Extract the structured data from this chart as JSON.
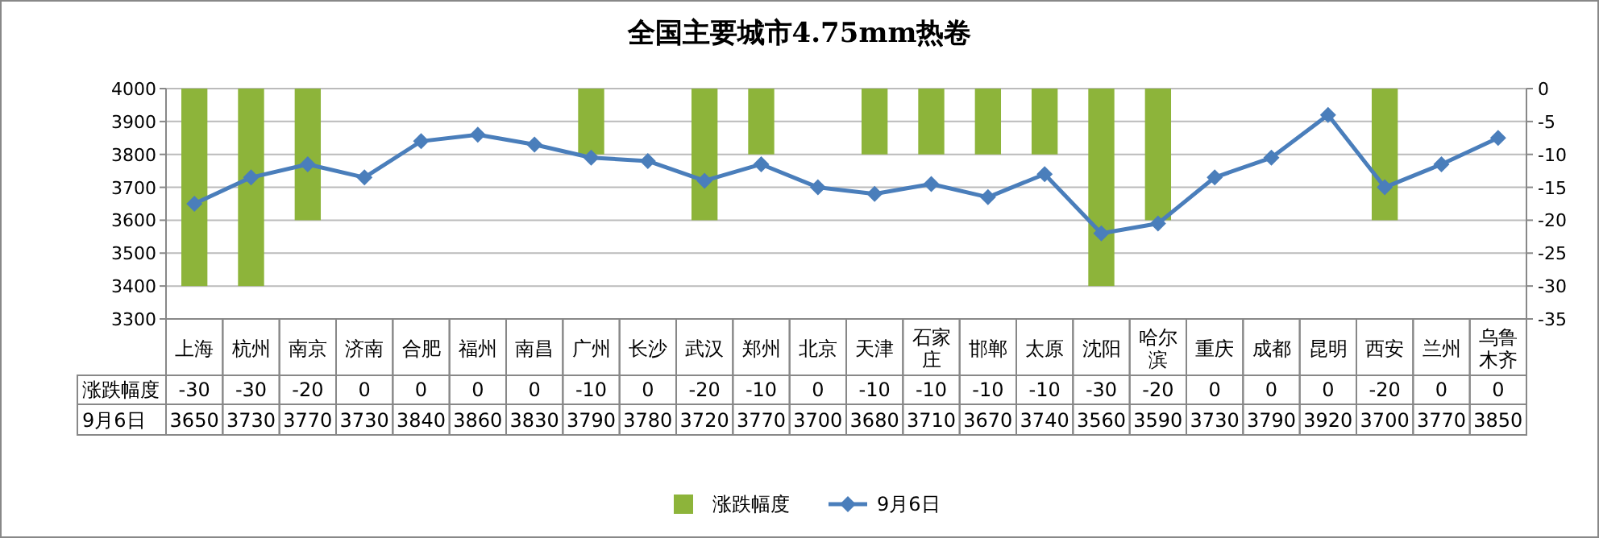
{
  "chart_data": {
    "type": "bar",
    "title": "全国主要城市4.75mm热卷",
    "categories": [
      "上海",
      "杭州",
      "南京",
      "济南",
      "合肥",
      "福州",
      "南昌",
      "广州",
      "长沙",
      "武汉",
      "郑州",
      "北京",
      "天津",
      "石家庄",
      "邯郸",
      "太原",
      "沈阳",
      "哈尔滨",
      "重庆",
      "成都",
      "昆明",
      "西安",
      "兰州",
      "乌鲁木齐"
    ],
    "series": [
      {
        "name": "涨跌幅度",
        "axis": "y2",
        "color": "#8db43a",
        "values": [
          -30,
          -30,
          -20,
          0,
          0,
          0,
          0,
          -10,
          0,
          -20,
          -10,
          0,
          -10,
          -10,
          -10,
          -10,
          -30,
          -20,
          0,
          0,
          0,
          -20,
          0,
          0
        ]
      },
      {
        "name": "9月6日",
        "type": "line",
        "axis": "y",
        "color": "#4a7ebb",
        "values": [
          3650,
          3730,
          3770,
          3730,
          3840,
          3860,
          3830,
          3790,
          3780,
          3720,
          3770,
          3700,
          3680,
          3710,
          3670,
          3740,
          3560,
          3590,
          3730,
          3790,
          3920,
          3700,
          3770,
          3850
        ]
      }
    ],
    "ylim": [
      3300,
      4000
    ],
    "yticks": [
      3300,
      3400,
      3500,
      3600,
      3700,
      3800,
      3900,
      4000
    ],
    "y2lim": [
      -35,
      0
    ],
    "y2ticks": [
      -35,
      -30,
      -25,
      -20,
      -15,
      -10,
      -5,
      0
    ],
    "grid": "y",
    "legend": "bottom",
    "data_labels": true,
    "marker": "diamond"
  }
}
